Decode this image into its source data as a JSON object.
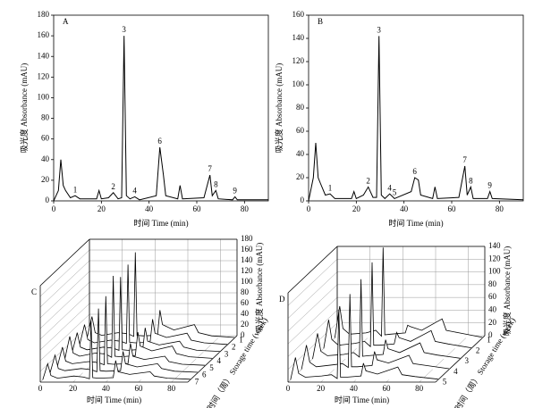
{
  "chart_data": [
    {
      "type": "line",
      "panel": "A",
      "xlabel": "时间 Time (min)",
      "ylabel": "吸光度 Absorbance (mAU)",
      "xlim": [
        0,
        90
      ],
      "ylim": [
        0,
        180
      ],
      "xticks": [
        0,
        20,
        40,
        60,
        80
      ],
      "yticks": [
        0,
        20,
        40,
        60,
        80,
        100,
        120,
        140,
        160,
        180
      ],
      "color": "#000000",
      "x": [
        0,
        2,
        3,
        4,
        5,
        7,
        9,
        11,
        18,
        19,
        20,
        23,
        25,
        27,
        28.5,
        29.5,
        30.5,
        32,
        34,
        36,
        43,
        44.5,
        46,
        47,
        52,
        53,
        54,
        63,
        65.5,
        66.5,
        68,
        69,
        75,
        76,
        77,
        90
      ],
      "values": [
        0,
        10,
        40,
        15,
        10,
        3,
        5,
        2,
        2,
        10,
        2,
        3,
        8,
        2,
        3,
        160,
        5,
        2,
        4,
        1,
        5,
        52,
        25,
        5,
        2,
        15,
        2,
        3,
        25,
        5,
        10,
        2,
        1,
        4,
        1,
        1
      ],
      "peaks": [
        {
          "label": "1",
          "x": 9
        },
        {
          "label": "2",
          "x": 25
        },
        {
          "label": "3",
          "x": 29.5
        },
        {
          "label": "4",
          "x": 34
        },
        {
          "label": "6",
          "x": 44.5
        },
        {
          "label": "7",
          "x": 65.5
        },
        {
          "label": "8",
          "x": 68
        },
        {
          "label": "9",
          "x": 76
        }
      ]
    },
    {
      "type": "line",
      "panel": "B",
      "xlabel": "时间 Time (min)",
      "ylabel": "吸光度 Absorbance (mAU)",
      "xlim": [
        0,
        90
      ],
      "ylim": [
        0,
        160
      ],
      "xticks": [
        0,
        20,
        40,
        60,
        80
      ],
      "yticks": [
        0,
        20,
        40,
        60,
        80,
        100,
        120,
        140,
        160
      ],
      "color": "#000000",
      "x": [
        0,
        2,
        3,
        4,
        5,
        7,
        9,
        11,
        18,
        19,
        20,
        23,
        25,
        27,
        28.5,
        29.5,
        30.5,
        32,
        34,
        36,
        43,
        44.5,
        46,
        47,
        52,
        53,
        54,
        63,
        65.5,
        66.5,
        68,
        69,
        75,
        76,
        77,
        90
      ],
      "values": [
        0,
        20,
        50,
        20,
        15,
        5,
        6,
        2,
        2,
        8,
        2,
        5,
        12,
        3,
        3,
        142,
        5,
        2,
        6,
        2,
        8,
        20,
        18,
        5,
        2,
        12,
        2,
        3,
        30,
        5,
        12,
        2,
        2,
        8,
        2,
        1
      ],
      "peaks": [
        {
          "label": "1",
          "x": 9
        },
        {
          "label": "2",
          "x": 25
        },
        {
          "label": "3",
          "x": 29.5
        },
        {
          "label": "4",
          "x": 34
        },
        {
          "label": "5",
          "x": 36
        },
        {
          "label": "6",
          "x": 44.5
        },
        {
          "label": "7",
          "x": 65.5
        },
        {
          "label": "8",
          "x": 68
        },
        {
          "label": "9",
          "x": 76
        }
      ]
    },
    {
      "type": "waterfall",
      "panel": "C",
      "xlabel": "时间 Time (min)",
      "ylabel": "吸光度 Absorbance (mAU)",
      "zlabel": "贮藏时间（周） Storage time (week)",
      "xlim": [
        0,
        90
      ],
      "ylim": [
        0,
        180
      ],
      "xticks": [
        0,
        20,
        40,
        60,
        80
      ],
      "yticks": [
        0,
        20,
        40,
        60,
        80,
        100,
        120,
        140,
        160,
        180
      ],
      "color": "#000000",
      "x": [
        0,
        3,
        5,
        9,
        19,
        25,
        28.5,
        29.5,
        30.5,
        34,
        43,
        44.5,
        46,
        53,
        65.5,
        68,
        76,
        90
      ],
      "series": [
        {
          "name": "1",
          "values": [
            0,
            40,
            10,
            5,
            10,
            8,
            3,
            160,
            5,
            4,
            5,
            52,
            25,
            15,
            25,
            10,
            4,
            1
          ]
        },
        {
          "name": "2",
          "values": [
            0,
            38,
            10,
            4,
            9,
            7,
            3,
            150,
            5,
            4,
            5,
            48,
            22,
            14,
            22,
            9,
            4,
            1
          ]
        },
        {
          "name": "3",
          "values": [
            0,
            36,
            9,
            4,
            9,
            7,
            3,
            140,
            4,
            3,
            5,
            45,
            20,
            13,
            20,
            9,
            3,
            1
          ]
        },
        {
          "name": "4",
          "values": [
            0,
            42,
            11,
            5,
            11,
            9,
            3,
            155,
            5,
            4,
            6,
            50,
            24,
            15,
            24,
            10,
            4,
            1
          ]
        },
        {
          "name": "5",
          "values": [
            0,
            35,
            9,
            4,
            8,
            6,
            2,
            130,
            4,
            3,
            4,
            42,
            18,
            12,
            18,
            8,
            3,
            1
          ]
        },
        {
          "name": "6",
          "values": [
            0,
            33,
            8,
            4,
            8,
            6,
            2,
            120,
            4,
            3,
            4,
            40,
            17,
            11,
            17,
            8,
            3,
            1
          ]
        },
        {
          "name": "7",
          "values": [
            0,
            30,
            8,
            3,
            7,
            5,
            2,
            110,
            4,
            3,
            4,
            36,
            15,
            10,
            15,
            7,
            3,
            1
          ]
        }
      ]
    },
    {
      "type": "waterfall",
      "panel": "D",
      "xlabel": "时间 Time (min)",
      "ylabel": "吸光度 Absorbance (mAU)",
      "zlabel": "贮藏时间（周） Storage time (week)",
      "xlim": [
        0,
        90
      ],
      "ylim": [
        0,
        140
      ],
      "xticks": [
        0,
        20,
        40,
        60,
        80
      ],
      "yticks": [
        0,
        20,
        40,
        60,
        80,
        100,
        120,
        140
      ],
      "color": "#000000",
      "x": [
        0,
        3,
        5,
        9,
        19,
        25,
        28.5,
        29.5,
        30.5,
        34,
        43,
        44.5,
        46,
        53,
        65.5,
        68,
        76,
        90
      ],
      "series": [
        {
          "name": "1",
          "values": [
            0,
            50,
            15,
            6,
            8,
            12,
            3,
            142,
            5,
            6,
            8,
            20,
            18,
            12,
            30,
            12,
            8,
            1
          ]
        },
        {
          "name": "2",
          "values": [
            0,
            45,
            14,
            5,
            8,
            11,
            3,
            135,
            5,
            5,
            7,
            25,
            17,
            11,
            28,
            11,
            7,
            1
          ]
        },
        {
          "name": "3",
          "values": [
            0,
            40,
            12,
            5,
            7,
            10,
            3,
            125,
            4,
            5,
            7,
            30,
            16,
            10,
            25,
            10,
            6,
            1
          ]
        },
        {
          "name": "4",
          "values": [
            0,
            38,
            11,
            4,
            7,
            9,
            3,
            118,
            4,
            4,
            6,
            28,
            15,
            10,
            22,
            9,
            6,
            1
          ]
        },
        {
          "name": "5",
          "values": [
            0,
            35,
            10,
            4,
            6,
            8,
            2,
            110,
            4,
            4,
            6,
            26,
            14,
            9,
            20,
            8,
            5,
            1
          ]
        }
      ]
    }
  ]
}
